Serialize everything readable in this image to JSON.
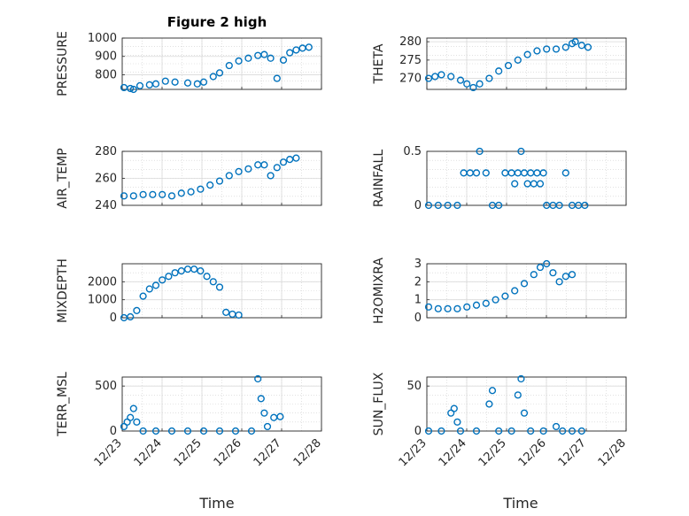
{
  "figure_title": "Figure 2 high",
  "colors": {
    "marker": "#0072BD",
    "axis": "#262626",
    "grid": "#d9d9d9"
  },
  "chart_data": [
    {
      "type": "scatter",
      "ylabel": "PRESSURE",
      "ylim": [
        720,
        1000
      ],
      "yticks": [
        800,
        900,
        1000
      ],
      "x_range": [
        "12/23",
        "12/27"
      ],
      "points": [
        [
          0.0,
          730
        ],
        [
          0.2,
          725
        ],
        [
          0.3,
          720
        ],
        [
          0.5,
          740
        ],
        [
          0.8,
          745
        ],
        [
          1.0,
          750
        ],
        [
          1.3,
          765
        ],
        [
          1.6,
          760
        ],
        [
          2.0,
          755
        ],
        [
          2.3,
          750
        ],
        [
          2.5,
          760
        ],
        [
          2.8,
          790
        ],
        [
          3.0,
          810
        ],
        [
          3.3,
          850
        ],
        [
          3.6,
          875
        ],
        [
          3.9,
          890
        ],
        [
          4.2,
          905
        ],
        [
          4.4,
          910
        ],
        [
          4.6,
          890
        ],
        [
          4.8,
          780
        ],
        [
          5.0,
          880
        ],
        [
          5.2,
          920
        ],
        [
          5.4,
          935
        ],
        [
          5.6,
          945
        ],
        [
          5.8,
          950
        ]
      ]
    },
    {
      "type": "scatter",
      "ylabel": "THETA",
      "ylim": [
        267,
        281
      ],
      "yticks": [
        270,
        275,
        280
      ],
      "points": [
        [
          0.0,
          270
        ],
        [
          0.2,
          270.5
        ],
        [
          0.4,
          271
        ],
        [
          0.7,
          270.5
        ],
        [
          1.0,
          269.5
        ],
        [
          1.2,
          268.5
        ],
        [
          1.4,
          267.5
        ],
        [
          1.6,
          268.5
        ],
        [
          1.9,
          270
        ],
        [
          2.2,
          272
        ],
        [
          2.5,
          273.5
        ],
        [
          2.8,
          275
        ],
        [
          3.1,
          276.5
        ],
        [
          3.4,
          277.5
        ],
        [
          3.7,
          278
        ],
        [
          4.0,
          278
        ],
        [
          4.3,
          278.5
        ],
        [
          4.5,
          279.5
        ],
        [
          4.6,
          280
        ],
        [
          4.8,
          279
        ],
        [
          5.0,
          278.5
        ]
      ]
    },
    {
      "type": "scatter",
      "ylabel": "AIR_TEMP",
      "ylim": [
        240,
        280
      ],
      "yticks": [
        240,
        260,
        280
      ],
      "points": [
        [
          0.0,
          247
        ],
        [
          0.3,
          247
        ],
        [
          0.6,
          248
        ],
        [
          0.9,
          248
        ],
        [
          1.2,
          248
        ],
        [
          1.5,
          247
        ],
        [
          1.8,
          249
        ],
        [
          2.1,
          250
        ],
        [
          2.4,
          252
        ],
        [
          2.7,
          255
        ],
        [
          3.0,
          258
        ],
        [
          3.3,
          262
        ],
        [
          3.6,
          265
        ],
        [
          3.9,
          267
        ],
        [
          4.2,
          270
        ],
        [
          4.4,
          270
        ],
        [
          4.6,
          262
        ],
        [
          4.8,
          268
        ],
        [
          5.0,
          272
        ],
        [
          5.2,
          274
        ],
        [
          5.4,
          275
        ]
      ]
    },
    {
      "type": "scatter",
      "ylabel": "RAINFALL",
      "ylim": [
        0,
        0.5
      ],
      "yticks": [
        0,
        0.5
      ],
      "points": [
        [
          0.0,
          0
        ],
        [
          0.3,
          0
        ],
        [
          0.6,
          0
        ],
        [
          0.9,
          0
        ],
        [
          1.1,
          0.3
        ],
        [
          1.3,
          0.3
        ],
        [
          1.5,
          0.3
        ],
        [
          1.6,
          0.5
        ],
        [
          1.8,
          0.3
        ],
        [
          2.0,
          0
        ],
        [
          2.2,
          0
        ],
        [
          2.4,
          0.3
        ],
        [
          2.6,
          0.3
        ],
        [
          2.7,
          0.2
        ],
        [
          2.8,
          0.3
        ],
        [
          2.9,
          0.5
        ],
        [
          3.0,
          0.3
        ],
        [
          3.1,
          0.2
        ],
        [
          3.2,
          0.3
        ],
        [
          3.3,
          0.2
        ],
        [
          3.4,
          0.3
        ],
        [
          3.5,
          0.2
        ],
        [
          3.6,
          0.3
        ],
        [
          3.7,
          0
        ],
        [
          3.9,
          0
        ],
        [
          4.1,
          0
        ],
        [
          4.3,
          0.3
        ],
        [
          4.5,
          0
        ],
        [
          4.7,
          0
        ],
        [
          4.9,
          0
        ]
      ]
    },
    {
      "type": "scatter",
      "ylabel": "MIXDEPTH",
      "ylim": [
        0,
        3000
      ],
      "yticks": [
        0,
        1000,
        2000
      ],
      "points": [
        [
          0.0,
          0
        ],
        [
          0.2,
          50
        ],
        [
          0.4,
          400
        ],
        [
          0.6,
          1200
        ],
        [
          0.8,
          1600
        ],
        [
          1.0,
          1800
        ],
        [
          1.2,
          2100
        ],
        [
          1.4,
          2300
        ],
        [
          1.6,
          2500
        ],
        [
          1.8,
          2600
        ],
        [
          2.0,
          2700
        ],
        [
          2.2,
          2700
        ],
        [
          2.4,
          2600
        ],
        [
          2.6,
          2300
        ],
        [
          2.8,
          2000
        ],
        [
          3.0,
          1700
        ],
        [
          3.2,
          300
        ],
        [
          3.4,
          200
        ],
        [
          3.6,
          150
        ]
      ]
    },
    {
      "type": "scatter",
      "ylabel": "H2OMIXRA",
      "ylim": [
        0,
        3
      ],
      "yticks": [
        0,
        1,
        2,
        3
      ],
      "points": [
        [
          0.0,
          0.6
        ],
        [
          0.3,
          0.5
        ],
        [
          0.6,
          0.5
        ],
        [
          0.9,
          0.5
        ],
        [
          1.2,
          0.6
        ],
        [
          1.5,
          0.7
        ],
        [
          1.8,
          0.8
        ],
        [
          2.1,
          1.0
        ],
        [
          2.4,
          1.2
        ],
        [
          2.7,
          1.5
        ],
        [
          3.0,
          1.9
        ],
        [
          3.3,
          2.4
        ],
        [
          3.5,
          2.8
        ],
        [
          3.7,
          3.0
        ],
        [
          3.9,
          2.5
        ],
        [
          4.1,
          2.0
        ],
        [
          4.3,
          2.3
        ],
        [
          4.5,
          2.4
        ]
      ]
    },
    {
      "type": "scatter",
      "ylabel": "TERR_MSL",
      "ylim": [
        0,
        600
      ],
      "yticks": [
        0,
        500
      ],
      "points": [
        [
          0.0,
          50
        ],
        [
          0.1,
          100
        ],
        [
          0.2,
          150
        ],
        [
          0.3,
          250
        ],
        [
          0.4,
          100
        ],
        [
          0.6,
          0
        ],
        [
          1.0,
          0
        ],
        [
          1.5,
          0
        ],
        [
          2.0,
          0
        ],
        [
          2.5,
          0
        ],
        [
          3.0,
          0
        ],
        [
          3.5,
          0
        ],
        [
          4.0,
          0
        ],
        [
          4.2,
          580
        ],
        [
          4.3,
          360
        ],
        [
          4.4,
          200
        ],
        [
          4.5,
          50
        ],
        [
          4.7,
          150
        ],
        [
          4.9,
          160
        ]
      ]
    },
    {
      "type": "scatter",
      "ylabel": "SUN_FLUX",
      "ylim": [
        0,
        60
      ],
      "yticks": [
        0,
        50
      ],
      "points": [
        [
          0.0,
          0
        ],
        [
          0.4,
          0
        ],
        [
          0.7,
          20
        ],
        [
          0.8,
          25
        ],
        [
          0.9,
          10
        ],
        [
          1.0,
          0
        ],
        [
          1.5,
          0
        ],
        [
          1.9,
          30
        ],
        [
          2.0,
          45
        ],
        [
          2.2,
          0
        ],
        [
          2.6,
          0
        ],
        [
          2.8,
          40
        ],
        [
          2.9,
          58
        ],
        [
          3.0,
          20
        ],
        [
          3.2,
          0
        ],
        [
          3.6,
          0
        ],
        [
          4.0,
          5
        ],
        [
          4.2,
          0
        ],
        [
          4.5,
          0
        ],
        [
          4.8,
          0
        ]
      ]
    }
  ],
  "xticks": [
    "12/23",
    "12/24",
    "12/25",
    "12/26",
    "12/27",
    "12/28"
  ],
  "xlabel": "Time"
}
